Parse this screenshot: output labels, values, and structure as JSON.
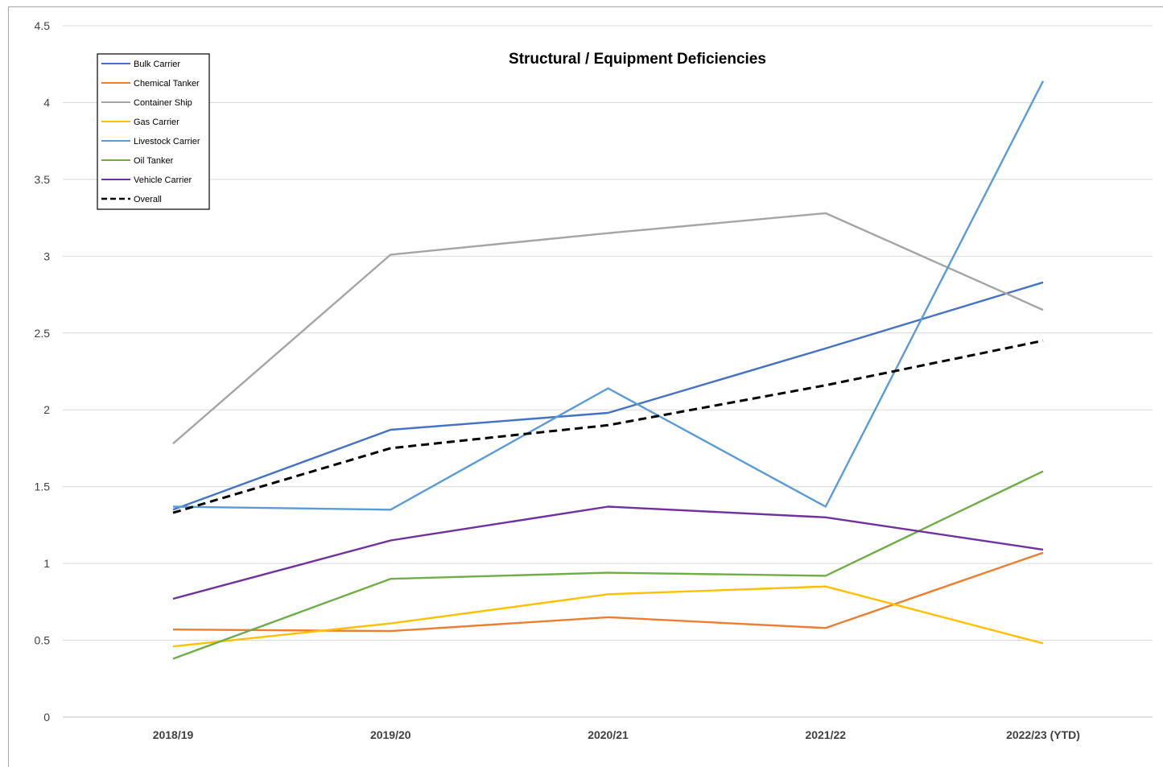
{
  "chart_data": {
    "type": "line",
    "title": "Structural / Equipment Deficiencies",
    "xlabel": "",
    "ylabel": "",
    "categories": [
      "2018/19",
      "2019/20",
      "2020/21",
      "2021/22",
      "2022/23 (YTD)"
    ],
    "ylim": [
      0,
      4.5
    ],
    "yticks": [
      "0",
      "0.5",
      "1",
      "1.5",
      "2",
      "2.5",
      "3",
      "3.5",
      "4",
      "4.5"
    ],
    "grid": true,
    "legend_position": "top-left",
    "series": [
      {
        "name": "Bulk Carrier",
        "color": "#4472c4",
        "dashed": false,
        "values": [
          1.35,
          1.87,
          1.98,
          2.4,
          2.83
        ]
      },
      {
        "name": "Chemical Tanker",
        "color": "#ed7d31",
        "dashed": false,
        "values": [
          0.57,
          0.56,
          0.65,
          0.58,
          1.07
        ]
      },
      {
        "name": "Container Ship",
        "color": "#a5a5a5",
        "dashed": false,
        "values": [
          1.78,
          3.01,
          3.15,
          3.28,
          2.65
        ]
      },
      {
        "name": "Gas Carrier",
        "color": "#ffc000",
        "dashed": false,
        "values": [
          0.46,
          0.61,
          0.8,
          0.85,
          0.48
        ]
      },
      {
        "name": "Livestock Carrier",
        "color": "#5b9bd5",
        "dashed": false,
        "values": [
          1.37,
          1.35,
          2.14,
          1.37,
          4.14
        ]
      },
      {
        "name": "Oil Tanker",
        "color": "#70ad47",
        "dashed": false,
        "values": [
          0.38,
          0.9,
          0.94,
          0.92,
          1.6
        ]
      },
      {
        "name": "Vehicle Carrier",
        "color": "#7030a0",
        "dashed": false,
        "values": [
          0.77,
          1.15,
          1.37,
          1.3,
          1.09
        ]
      },
      {
        "name": "Overall",
        "color": "#000000",
        "dashed": true,
        "values": [
          1.33,
          1.75,
          1.9,
          2.16,
          2.45
        ]
      }
    ]
  }
}
